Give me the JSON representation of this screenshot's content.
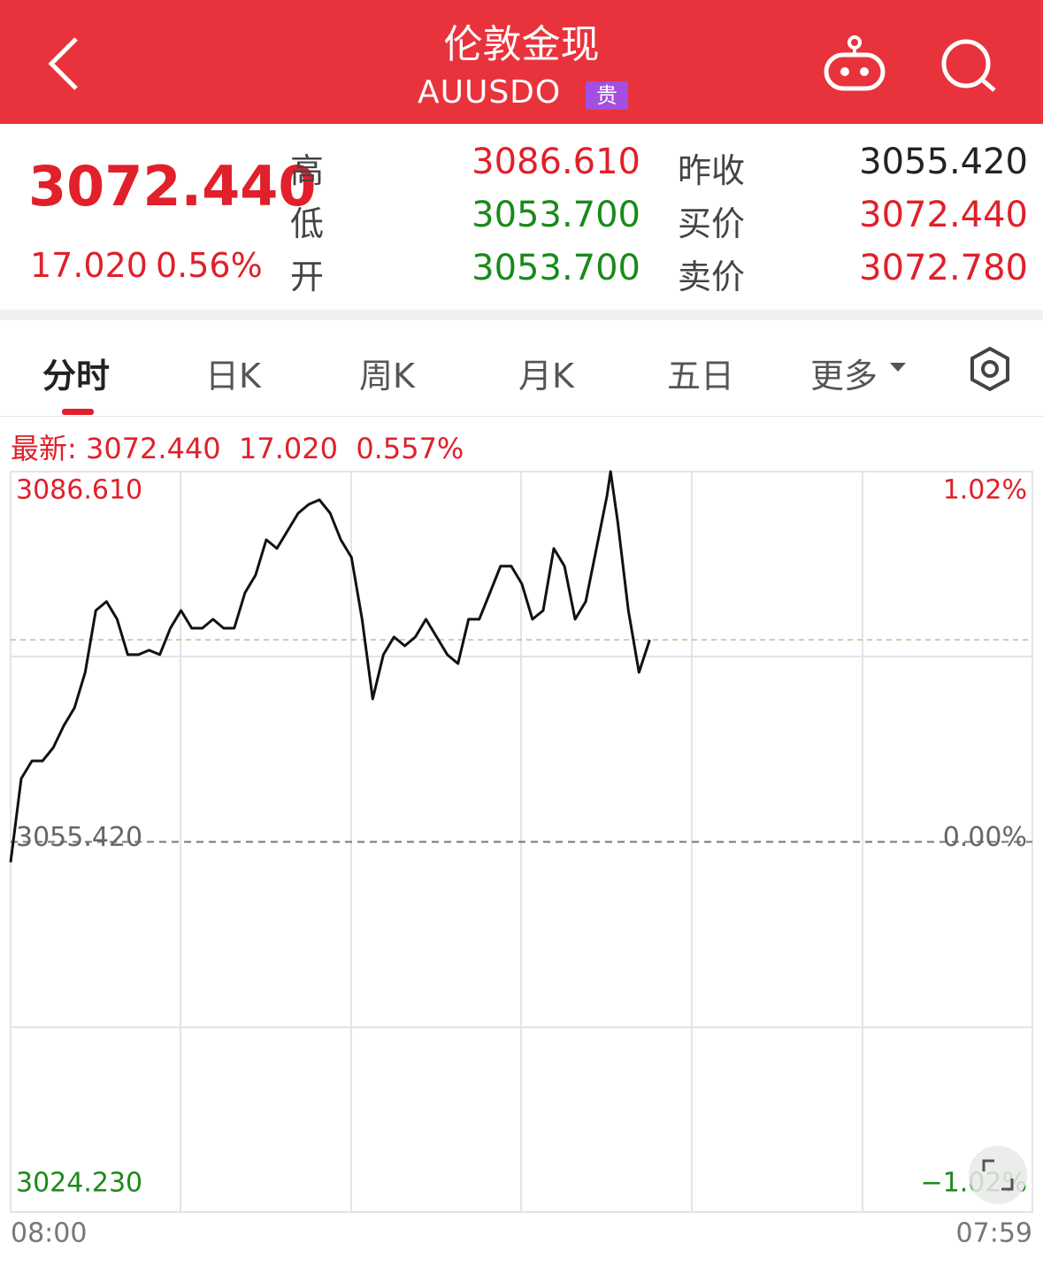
{
  "header": {
    "title": "伦敦金现",
    "code": "AUUSDO",
    "badge": "贵"
  },
  "quote": {
    "price": "3072.440",
    "change": "17.020",
    "change_pct": "0.56%",
    "stats": [
      {
        "label": "高",
        "value": "3086.610",
        "label2": "昨收",
        "value2": "3055.420"
      },
      {
        "label": "低",
        "value": "3053.700",
        "label2": "买价",
        "value2": "3072.440"
      },
      {
        "label": "开",
        "value": "3053.700",
        "label2": "卖价",
        "value2": "3072.780"
      }
    ]
  },
  "tabs": [
    "分时",
    "日K",
    "周K",
    "月K",
    "五日",
    "更多"
  ],
  "latest": {
    "label": "最新:",
    "change": "17.020",
    "change_pct": "0.557%"
  },
  "chart_data": {
    "type": "line",
    "color": "#111111",
    "x": [
      0,
      15,
      30,
      45,
      60,
      75,
      90,
      105,
      120,
      135,
      150,
      165,
      180,
      195,
      210,
      225,
      240,
      255,
      270,
      285,
      300,
      315,
      330,
      345,
      360,
      375,
      390,
      405,
      420,
      435,
      450,
      465,
      480,
      495,
      510,
      525,
      540,
      555,
      570,
      585,
      600,
      615,
      630,
      645,
      660,
      675,
      690,
      705,
      720,
      735,
      750,
      765,
      780,
      795,
      810,
      825,
      840,
      845,
      855,
      870,
      885,
      900
    ],
    "values": [
      3053.7,
      3060.75,
      3062.24,
      3062.24,
      3063.36,
      3065.22,
      3066.71,
      3069.7,
      3074.91,
      3075.66,
      3074.17,
      3071.19,
      3071.19,
      3071.56,
      3071.19,
      3073.42,
      3074.91,
      3073.42,
      3073.42,
      3074.17,
      3073.42,
      3073.42,
      3076.4,
      3077.89,
      3080.87,
      3080.13,
      3081.62,
      3083.11,
      3083.85,
      3084.23,
      3083.11,
      3080.87,
      3079.38,
      3074.17,
      3067.46,
      3071.19,
      3072.68,
      3071.93,
      3072.68,
      3074.17,
      3072.68,
      3071.19,
      3070.44,
      3074.17,
      3074.17,
      3076.4,
      3078.64,
      3078.64,
      3077.15,
      3074.17,
      3074.91,
      3080.13,
      3078.64,
      3074.17,
      3075.66,
      3080.13,
      3084.6,
      3086.61,
      3082.36,
      3074.91,
      3069.7,
      3072.44
    ],
    "xlim": [
      0,
      1439
    ],
    "xticks": [
      {
        "value": 0,
        "label": "08:00"
      },
      {
        "value": 1439,
        "label": "07:59"
      }
    ],
    "ylim": [
      3024.23,
      3086.61
    ],
    "yticks": [
      {
        "value": 3086.61,
        "label": "3086.610"
      },
      {
        "value": 3055.42,
        "label": "3055.420"
      },
      {
        "value": 3024.23,
        "label": "3024.230"
      }
    ],
    "y2lim": [
      -1.02,
      1.02
    ],
    "y2ticks": [
      {
        "value": 1.02,
        "label": "1.02%"
      },
      {
        "value": 0,
        "label": "0.00%"
      },
      {
        "value": -1.02,
        "label": "−1.02%"
      }
    ],
    "grid": true,
    "latest": {
      "value": 3072.44,
      "label": "3072.440"
    }
  }
}
